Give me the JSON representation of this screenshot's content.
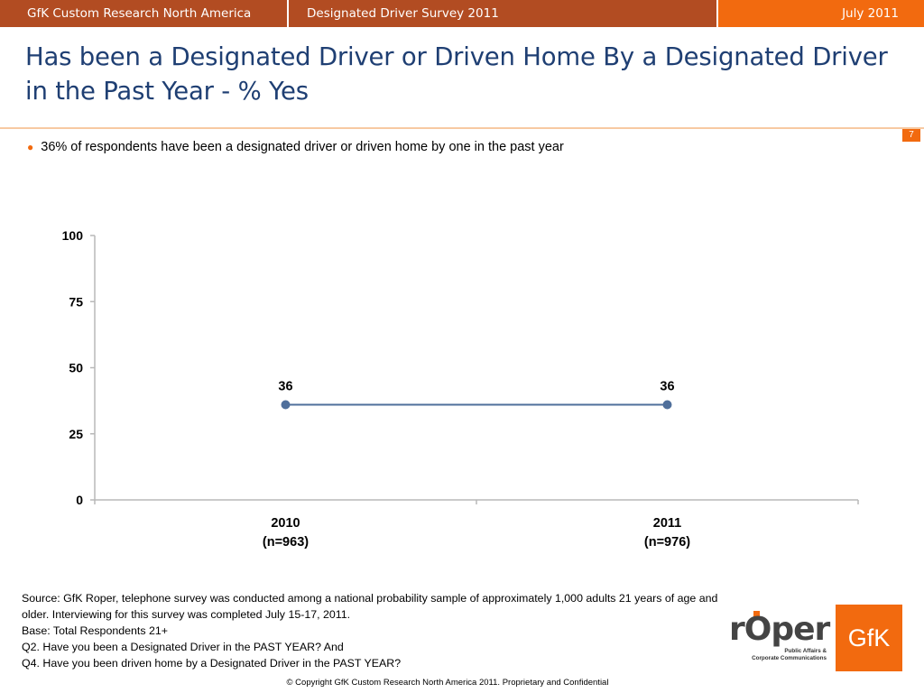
{
  "header": {
    "company": "GfK Custom Research North America",
    "survey": "Designated Driver Survey 2011",
    "date": "July 2011"
  },
  "slide": {
    "title": "Has been a Designated Driver or Driven Home By a Designated Driver in the Past Year - % Yes",
    "page_number": "7",
    "bullet": "36% of respondents have been a designated driver or driven home by one in the past year"
  },
  "chart_data": {
    "type": "line",
    "categories": [
      [
        "2010",
        "(n=963)"
      ],
      [
        "2011",
        "(n=976)"
      ]
    ],
    "series": [
      {
        "values": [
          36,
          36
        ],
        "color": "#4f6f9b"
      }
    ],
    "data_labels": [
      "36",
      "36"
    ],
    "yticks": [
      0,
      25,
      50,
      75,
      100
    ],
    "ylim": [
      0,
      100
    ],
    "grid": false,
    "legend": "none"
  },
  "footnotes": {
    "source": "Source: GfK Roper, telephone survey was conducted among a national probability sample of approximately 1,000 adults 21 years of age and older.  Interviewing for this survey was completed July 15-17, 2011.",
    "base": "Base: Total Respondents 21+",
    "q2": "Q2. Have you been a Designated Driver in the PAST YEAR? And",
    "q4": "Q4. Have you been driven home by a Designated Driver in the PAST YEAR?"
  },
  "copyright": "© Copyright GfK Custom Research North America 2011.  Proprietary and Confidential",
  "logos": {
    "roper_word": "rOper",
    "roper_sub_1": "Public Affairs &",
    "roper_sub_2": "Corporate Communications",
    "gfk": "GfK"
  },
  "colors": {
    "accent": "#f26a0f",
    "header_dark": "#b24c22",
    "title": "#1f3f73"
  }
}
